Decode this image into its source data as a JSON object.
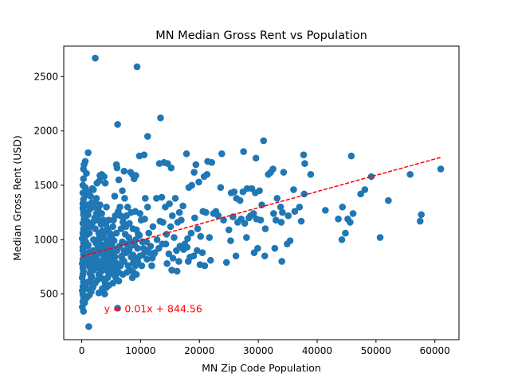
{
  "chart_data": {
    "type": "scatter",
    "title": "MN Median Gross Rent vs Population",
    "xlabel": "MN Zip Code Population",
    "ylabel": "Median Gross Rent (USD)",
    "xlim": [
      -3050,
      64100
    ],
    "ylim": [
      80,
      2780
    ],
    "x_ticks": [
      0,
      10000,
      20000,
      30000,
      40000,
      50000,
      60000
    ],
    "y_ticks": [
      500,
      1000,
      1500,
      2000,
      2500
    ],
    "grid": false,
    "marker_color": "#1f77b4",
    "regression": {
      "slope": 0.01495,
      "intercept": 844.56,
      "x_range": [
        0,
        61000
      ],
      "label": "y = 0.01x + 844.56",
      "color": "#ff0000",
      "label_x": 3800,
      "label_y": 360
    },
    "points": [
      [
        1200,
        200
      ],
      [
        2300,
        2670
      ],
      [
        9400,
        2590
      ],
      [
        13400,
        2120
      ],
      [
        11200,
        1950
      ],
      [
        6100,
        2060
      ],
      [
        1100,
        1800
      ],
      [
        600,
        1720
      ],
      [
        400,
        1690
      ],
      [
        300,
        1650
      ],
      [
        800,
        1610
      ],
      [
        300,
        1560
      ],
      [
        200,
        1500
      ],
      [
        600,
        1480
      ],
      [
        200,
        1430
      ],
      [
        900,
        1410
      ],
      [
        300,
        1370
      ],
      [
        200,
        1330
      ],
      [
        200,
        1290
      ],
      [
        300,
        1260
      ],
      [
        300,
        1230
      ],
      [
        400,
        1190
      ],
      [
        200,
        1150
      ],
      [
        300,
        1100
      ],
      [
        200,
        1060
      ],
      [
        100,
        1010
      ],
      [
        300,
        970
      ],
      [
        200,
        930
      ],
      [
        200,
        900
      ],
      [
        300,
        860
      ],
      [
        200,
        820
      ],
      [
        100,
        780
      ],
      [
        200,
        740
      ],
      [
        300,
        710
      ],
      [
        200,
        680
      ],
      [
        100,
        650
      ],
      [
        300,
        610
      ],
      [
        200,
        570
      ],
      [
        100,
        530
      ],
      [
        200,
        500
      ],
      [
        300,
        470
      ],
      [
        200,
        430
      ],
      [
        100,
        380
      ],
      [
        300,
        340
      ],
      [
        800,
        1250
      ],
      [
        900,
        1170
      ],
      [
        1000,
        1050
      ],
      [
        1100,
        950
      ],
      [
        1200,
        880
      ],
      [
        1300,
        820
      ],
      [
        1400,
        760
      ],
      [
        1500,
        700
      ],
      [
        1600,
        650
      ],
      [
        1700,
        600
      ],
      [
        1800,
        560
      ],
      [
        1900,
        900
      ],
      [
        2000,
        1000
      ],
      [
        2100,
        860
      ],
      [
        2200,
        780
      ],
      [
        2300,
        1100
      ],
      [
        2400,
        970
      ],
      [
        2500,
        830
      ],
      [
        2600,
        740
      ],
      [
        2700,
        1200
      ],
      [
        2800,
        900
      ],
      [
        2900,
        680
      ],
      [
        3000,
        1020
      ],
      [
        3100,
        880
      ],
      [
        3200,
        800
      ],
      [
        3300,
        1140
      ],
      [
        3400,
        950
      ],
      [
        3500,
        720
      ],
      [
        3600,
        640
      ],
      [
        3700,
        1060
      ],
      [
        3800,
        860
      ],
      [
        3900,
        500
      ],
      [
        4000,
        920
      ],
      [
        4100,
        780
      ],
      [
        4200,
        1300
      ],
      [
        4300,
        990
      ],
      [
        4400,
        820
      ],
      [
        4500,
        700
      ],
      [
        4600,
        1180
      ],
      [
        4700,
        900
      ],
      [
        4800,
        760
      ],
      [
        4900,
        1040
      ],
      [
        5000,
        870
      ],
      [
        5100,
        950
      ],
      [
        5200,
        810
      ],
      [
        5300,
        1120
      ],
      [
        5400,
        680
      ],
      [
        5500,
        990
      ],
      [
        5600,
        1400
      ],
      [
        5700,
        840
      ],
      [
        5800,
        910
      ],
      [
        5900,
        1060
      ],
      [
        6000,
        780
      ],
      [
        6100,
        370
      ],
      [
        1000,
        1320
      ],
      [
        1500,
        1400
      ],
      [
        2000,
        1460
      ],
      [
        2500,
        1380
      ],
      [
        3000,
        1540
      ],
      [
        3400,
        1600
      ],
      [
        4000,
        1520
      ],
      [
        3100,
        1590
      ],
      [
        1800,
        1470
      ],
      [
        2600,
        1520
      ],
      [
        1200,
        1440
      ],
      [
        3800,
        1580
      ],
      [
        5900,
        1690
      ],
      [
        6000,
        1660
      ],
      [
        7200,
        1630
      ],
      [
        8300,
        1620
      ],
      [
        8600,
        1600
      ],
      [
        8900,
        1560
      ],
      [
        9200,
        1590
      ],
      [
        9800,
        1770
      ],
      [
        10600,
        1780
      ],
      [
        13200,
        1700
      ],
      [
        14000,
        1710
      ],
      [
        14600,
        1700
      ],
      [
        15200,
        1660
      ],
      [
        17800,
        1790
      ],
      [
        19400,
        1690
      ],
      [
        21400,
        1720
      ],
      [
        22100,
        1710
      ],
      [
        23800,
        1790
      ],
      [
        27500,
        1810
      ],
      [
        29600,
        1750
      ],
      [
        30900,
        1910
      ],
      [
        32500,
        1650
      ],
      [
        34300,
        1620
      ],
      [
        37700,
        1780
      ],
      [
        37900,
        1700
      ],
      [
        38900,
        1600
      ],
      [
        45800,
        1770
      ],
      [
        49200,
        1580
      ],
      [
        55800,
        1600
      ],
      [
        61000,
        1650
      ],
      [
        6300,
        1550
      ],
      [
        6900,
        1450
      ],
      [
        7300,
        1380
      ],
      [
        7800,
        1300
      ],
      [
        8400,
        1250
      ],
      [
        9100,
        1260
      ],
      [
        9900,
        1240
      ],
      [
        10800,
        1380
      ],
      [
        11200,
        1300
      ],
      [
        12700,
        1380
      ],
      [
        13600,
        1390
      ],
      [
        14200,
        1300
      ],
      [
        14900,
        1330
      ],
      [
        15400,
        1220
      ],
      [
        15900,
        1380
      ],
      [
        16600,
        1250
      ],
      [
        17200,
        1310
      ],
      [
        18200,
        1480
      ],
      [
        18700,
        1500
      ],
      [
        19100,
        1620
      ],
      [
        19900,
        1530
      ],
      [
        20800,
        1580
      ],
      [
        21300,
        1600
      ],
      [
        22400,
        1240
      ],
      [
        23600,
        1480
      ],
      [
        25400,
        1430
      ],
      [
        25900,
        1440
      ],
      [
        26300,
        1380
      ],
      [
        26900,
        1360
      ],
      [
        27400,
        1440
      ],
      [
        28100,
        1470
      ],
      [
        28900,
        1470
      ],
      [
        29500,
        1430
      ],
      [
        30200,
        1450
      ],
      [
        30600,
        1320
      ],
      [
        31700,
        1600
      ],
      [
        32100,
        1620
      ],
      [
        33200,
        1380
      ],
      [
        33800,
        1300
      ],
      [
        34100,
        1250
      ],
      [
        36000,
        1460
      ],
      [
        37000,
        1300
      ],
      [
        37800,
        1420
      ],
      [
        47400,
        1420
      ],
      [
        48100,
        1460
      ],
      [
        6500,
        1300
      ],
      [
        7100,
        1200
      ],
      [
        7600,
        1220
      ],
      [
        8100,
        1150
      ],
      [
        8700,
        1100
      ],
      [
        9300,
        1090
      ],
      [
        9600,
        1050
      ],
      [
        10100,
        1180
      ],
      [
        10700,
        1190
      ],
      [
        11400,
        1060
      ],
      [
        12100,
        1120
      ],
      [
        12800,
        1000
      ],
      [
        13300,
        1170
      ],
      [
        13800,
        1160
      ],
      [
        14400,
        1050
      ],
      [
        15100,
        1120
      ],
      [
        15700,
        1020
      ],
      [
        16300,
        1160
      ],
      [
        16900,
        1180
      ],
      [
        17500,
        960
      ],
      [
        18000,
        1010
      ],
      [
        18600,
        1060
      ],
      [
        19200,
        1200
      ],
      [
        19700,
        1100
      ],
      [
        20200,
        1030
      ],
      [
        20600,
        1260
      ],
      [
        21100,
        1250
      ],
      [
        21700,
        1020
      ],
      [
        22800,
        1260
      ],
      [
        23200,
        1220
      ],
      [
        24100,
        1180
      ],
      [
        25000,
        1090
      ],
      [
        25700,
        1210
      ],
      [
        26500,
        1160
      ],
      [
        27100,
        1190
      ],
      [
        27700,
        1150
      ],
      [
        28400,
        1200
      ],
      [
        28700,
        1220
      ],
      [
        29200,
        1240
      ],
      [
        29700,
        1190
      ],
      [
        30400,
        1180
      ],
      [
        31200,
        1100
      ],
      [
        32600,
        1240
      ],
      [
        33000,
        1180
      ],
      [
        33900,
        1160
      ],
      [
        35100,
        1220
      ],
      [
        36200,
        1260
      ],
      [
        37300,
        1170
      ],
      [
        41400,
        1270
      ],
      [
        43600,
        1190
      ],
      [
        44300,
        1300
      ],
      [
        45200,
        1190
      ],
      [
        45600,
        1160
      ],
      [
        46100,
        1240
      ],
      [
        52100,
        1360
      ],
      [
        57700,
        1230
      ],
      [
        57500,
        1170
      ],
      [
        6700,
        1100
      ],
      [
        7400,
        1050
      ],
      [
        8000,
        1020
      ],
      [
        8500,
        980
      ],
      [
        9000,
        950
      ],
      [
        9500,
        920
      ],
      [
        10300,
        980
      ],
      [
        10900,
        900
      ],
      [
        11700,
        940
      ],
      [
        12300,
        870
      ],
      [
        13100,
        920
      ],
      [
        13700,
        960
      ],
      [
        14300,
        960
      ],
      [
        14800,
        870
      ],
      [
        15500,
        830
      ],
      [
        16100,
        900
      ],
      [
        16700,
        940
      ],
      [
        17300,
        910
      ],
      [
        17900,
        930
      ],
      [
        18400,
        840
      ],
      [
        19000,
        850
      ],
      [
        19600,
        900
      ],
      [
        20500,
        880
      ],
      [
        21900,
        810
      ],
      [
        24600,
        790
      ],
      [
        25300,
        990
      ],
      [
        26200,
        850
      ],
      [
        28000,
        1020
      ],
      [
        29300,
        880
      ],
      [
        29900,
        920
      ],
      [
        31100,
        850
      ],
      [
        32800,
        920
      ],
      [
        34000,
        800
      ],
      [
        34900,
        960
      ],
      [
        35400,
        990
      ],
      [
        44200,
        1000
      ],
      [
        44800,
        1060
      ],
      [
        50700,
        1020
      ],
      [
        6800,
        850
      ],
      [
        7200,
        800
      ],
      [
        7900,
        760
      ],
      [
        8200,
        720
      ],
      [
        8800,
        700
      ],
      [
        9300,
        680
      ],
      [
        10200,
        760
      ],
      [
        11100,
        820
      ],
      [
        11900,
        760
      ],
      [
        12400,
        880
      ],
      [
        14500,
        780
      ],
      [
        15300,
        720
      ],
      [
        16200,
        710
      ],
      [
        16500,
        800
      ],
      [
        18100,
        800
      ],
      [
        20100,
        770
      ],
      [
        20900,
        760
      ],
      [
        5300,
        600
      ],
      [
        5800,
        650
      ],
      [
        6300,
        620
      ],
      [
        7000,
        680
      ],
      [
        7700,
        700
      ],
      [
        8600,
        650
      ],
      [
        9400,
        830
      ],
      [
        4200,
        560
      ],
      [
        4600,
        580
      ],
      [
        3500,
        550
      ],
      [
        2900,
        510
      ],
      [
        2300,
        600
      ],
      [
        1900,
        560
      ],
      [
        1600,
        520
      ],
      [
        1300,
        490
      ],
      [
        700,
        460
      ],
      [
        500,
        420
      ],
      [
        900,
        470
      ],
      [
        3400,
        520
      ],
      [
        4000,
        600
      ],
      [
        4400,
        650
      ],
      [
        5200,
        710
      ],
      [
        2700,
        630
      ],
      [
        1700,
        660
      ],
      [
        1100,
        610
      ],
      [
        600,
        580
      ],
      [
        800,
        550
      ],
      [
        1400,
        690
      ],
      [
        2000,
        720
      ],
      [
        2600,
        760
      ],
      [
        3200,
        700
      ],
      [
        3700,
        760
      ],
      [
        4300,
        740
      ],
      [
        4900,
        800
      ],
      [
        5500,
        840
      ],
      [
        6000,
        900
      ],
      [
        6400,
        940
      ],
      [
        6900,
        980
      ],
      [
        7500,
        880
      ],
      [
        8100,
        920
      ],
      [
        8700,
        860
      ],
      [
        9200,
        1000
      ],
      [
        9800,
        1040
      ],
      [
        10400,
        860
      ],
      [
        500,
        1020
      ],
      [
        700,
        980
      ],
      [
        1000,
        940
      ],
      [
        1300,
        1060
      ],
      [
        1600,
        1120
      ],
      [
        1900,
        1160
      ],
      [
        2200,
        1200
      ],
      [
        2500,
        1240
      ],
      [
        2800,
        1280
      ],
      [
        3100,
        1320
      ],
      [
        3400,
        1240
      ],
      [
        3700,
        1180
      ],
      [
        4100,
        1140
      ],
      [
        4400,
        1100
      ],
      [
        4800,
        1060
      ],
      [
        5100,
        1020
      ],
      [
        5400,
        1180
      ],
      [
        5700,
        1220
      ],
      [
        6200,
        1260
      ],
      [
        6600,
        1220
      ],
      [
        7000,
        1160
      ],
      [
        7500,
        1120
      ],
      [
        400,
        880
      ],
      [
        600,
        840
      ],
      [
        900,
        800
      ],
      [
        1200,
        760
      ],
      [
        1500,
        730
      ],
      [
        1800,
        800
      ],
      [
        2100,
        850
      ],
      [
        2400,
        900
      ],
      [
        2700,
        950
      ],
      [
        3000,
        980
      ],
      [
        3300,
        900
      ],
      [
        3600,
        860
      ],
      [
        3900,
        820
      ],
      [
        4200,
        880
      ],
      [
        4500,
        940
      ],
      [
        4800,
        980
      ],
      [
        5100,
        900
      ],
      [
        5400,
        860
      ],
      [
        5700,
        780
      ],
      [
        6000,
        740
      ],
      [
        6300,
        700
      ],
      [
        6600,
        760
      ],
      [
        6900,
        820
      ],
      [
        7200,
        900
      ],
      [
        7600,
        960
      ],
      [
        8000,
        900
      ],
      [
        8400,
        840
      ],
      [
        8800,
        790
      ],
      [
        9100,
        760
      ],
      [
        9500,
        800
      ],
      [
        9900,
        850
      ],
      [
        10500,
        920
      ],
      [
        11000,
        980
      ],
      [
        11500,
        880
      ],
      [
        12000,
        830
      ],
      [
        500,
        1200
      ],
      [
        700,
        1140
      ],
      [
        1000,
        1100
      ],
      [
        1100,
        1230
      ],
      [
        1400,
        1280
      ],
      [
        1700,
        1340
      ],
      [
        2000,
        1300
      ],
      [
        2300,
        1350
      ],
      [
        2600,
        1180
      ],
      [
        2900,
        1060
      ],
      [
        3200,
        1020
      ],
      [
        3500,
        1080
      ],
      [
        3800,
        1020
      ],
      [
        4100,
        960
      ],
      [
        4400,
        900
      ],
      [
        4700,
        860
      ],
      [
        5000,
        820
      ],
      [
        5300,
        780
      ],
      [
        5600,
        740
      ]
    ]
  }
}
